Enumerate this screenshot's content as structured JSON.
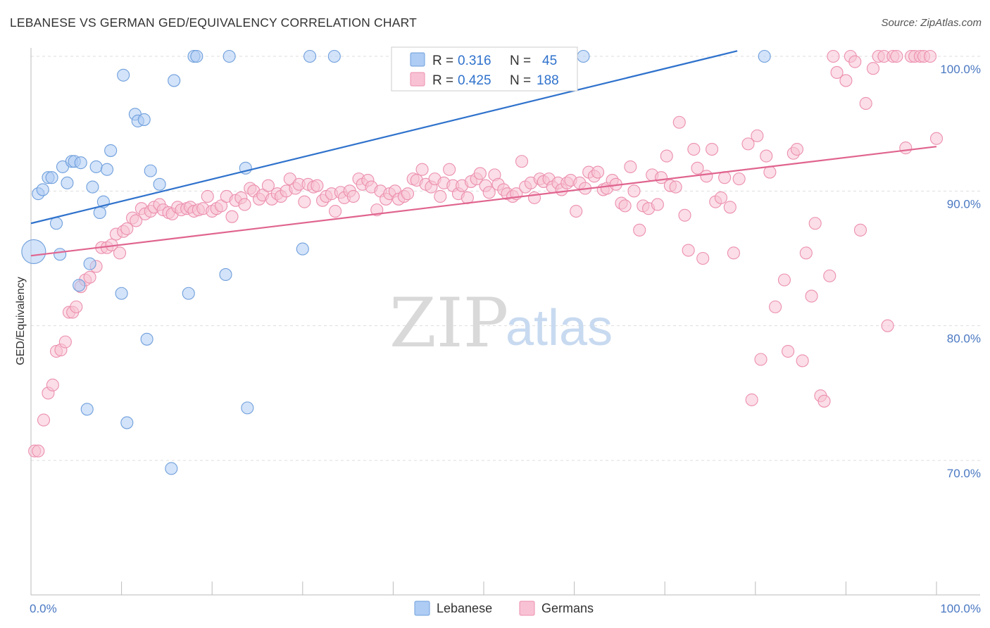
{
  "title": "LEBANESE VS GERMAN GED/EQUIVALENCY CORRELATION CHART",
  "source": "Source: ZipAtlas.com",
  "watermark": {
    "zip": "ZIP",
    "atlas": "atlas"
  },
  "colors": {
    "lebanese_fill": "#aeccf4",
    "lebanese_stroke": "#6f9fdc",
    "lebanese_line": "#2f72cc",
    "german_fill": "#f8c2d4",
    "german_stroke": "#ec8fad",
    "german_line": "#e0648f",
    "axis_text": "#4a78c2",
    "grid": "#dddddd"
  },
  "legend": {
    "rows": [
      {
        "r_label": "R =",
        "r_value": "0.316",
        "n_label": "N =",
        "n_value": "45"
      },
      {
        "r_label": "R =",
        "r_value": "0.425",
        "n_label": "N =",
        "n_value": "188"
      }
    ],
    "bottom": [
      "Lebanese",
      "Germans"
    ]
  },
  "chart_data": {
    "type": "scatter",
    "title": "LEBANESE VS GERMAN GED/EQUIVALENCY CORRELATION CHART",
    "xlabel": "",
    "ylabel": "GED/Equivalency",
    "xlim": [
      0,
      100
    ],
    "ylim": [
      61,
      101
    ],
    "x_tick_labels": [
      "0.0%",
      "100.0%"
    ],
    "y_ticks": [
      70,
      80,
      90,
      100
    ],
    "y_tick_labels": [
      "70.0%",
      "80.0%",
      "90.0%",
      "100.0%"
    ],
    "grid": true,
    "legend_position": "top-center",
    "series": [
      {
        "name": "Lebanese",
        "r": 0.316,
        "n": 45,
        "trend": {
          "x": [
            0,
            78
          ],
          "y": [
            87.6,
            100.4
          ]
        },
        "points": [
          [
            0.3,
            85.5,
            1
          ],
          [
            0.8,
            89.8,
            0
          ],
          [
            1.3,
            90.1,
            0
          ],
          [
            1.9,
            91.0,
            0
          ],
          [
            2.3,
            91.0,
            0
          ],
          [
            2.8,
            87.6,
            0
          ],
          [
            3.2,
            85.3,
            0
          ],
          [
            3.5,
            91.8,
            0
          ],
          [
            4.0,
            90.6,
            0
          ],
          [
            4.5,
            92.2,
            0
          ],
          [
            4.8,
            92.2,
            0
          ],
          [
            5.3,
            83.0,
            0
          ],
          [
            5.5,
            92.1,
            0
          ],
          [
            6.2,
            73.8,
            0
          ],
          [
            6.5,
            84.6,
            0
          ],
          [
            6.8,
            90.3,
            0
          ],
          [
            7.2,
            91.8,
            0
          ],
          [
            7.6,
            88.4,
            0
          ],
          [
            8.0,
            89.2,
            0
          ],
          [
            8.4,
            91.6,
            0
          ],
          [
            8.8,
            93.0,
            0
          ],
          [
            10.0,
            82.4,
            0
          ],
          [
            10.2,
            98.6,
            0
          ],
          [
            10.6,
            72.8,
            0
          ],
          [
            11.5,
            95.7,
            0
          ],
          [
            11.8,
            95.2,
            0
          ],
          [
            12.5,
            95.3,
            0
          ],
          [
            12.8,
            79.0,
            0
          ],
          [
            13.2,
            91.5,
            0
          ],
          [
            14.2,
            90.5,
            0
          ],
          [
            15.5,
            69.4,
            0
          ],
          [
            15.8,
            98.2,
            0
          ],
          [
            17.4,
            82.4,
            0
          ],
          [
            18.0,
            100.0,
            0
          ],
          [
            18.3,
            100.0,
            0
          ],
          [
            21.5,
            83.8,
            0
          ],
          [
            21.9,
            100.0,
            0
          ],
          [
            23.7,
            91.7,
            0
          ],
          [
            23.9,
            73.9,
            0
          ],
          [
            30.0,
            85.7,
            0
          ],
          [
            30.8,
            100.0,
            0
          ],
          [
            33.5,
            100.0,
            0
          ],
          [
            61.0,
            100.0,
            0
          ],
          [
            81.0,
            100.0,
            0
          ]
        ]
      },
      {
        "name": "Germans",
        "r": 0.425,
        "n": 188,
        "trend": {
          "x": [
            0,
            100
          ],
          "y": [
            85.2,
            93.3
          ]
        },
        "points": [
          [
            0.4,
            70.7,
            0
          ],
          [
            0.8,
            70.7,
            0
          ],
          [
            1.4,
            73.0,
            0
          ],
          [
            1.9,
            75.0,
            0
          ],
          [
            2.4,
            75.6,
            0
          ],
          [
            2.8,
            78.1,
            0
          ],
          [
            3.3,
            78.2,
            0
          ],
          [
            3.8,
            78.8,
            0
          ],
          [
            4.2,
            81.0,
            0
          ],
          [
            4.6,
            81.0,
            0
          ],
          [
            5.0,
            81.4,
            0
          ],
          [
            5.5,
            82.9,
            0
          ],
          [
            6.0,
            83.4,
            0
          ],
          [
            6.5,
            83.6,
            0
          ],
          [
            7.2,
            84.4,
            0
          ],
          [
            7.8,
            85.8,
            0
          ],
          [
            8.4,
            85.8,
            0
          ],
          [
            8.9,
            86.0,
            0
          ],
          [
            9.4,
            86.8,
            0
          ],
          [
            9.8,
            85.4,
            0
          ],
          [
            10.2,
            87.0,
            0
          ],
          [
            10.6,
            87.2,
            0
          ],
          [
            11.2,
            88.0,
            0
          ],
          [
            11.6,
            87.8,
            0
          ],
          [
            12.2,
            88.7,
            0
          ],
          [
            12.6,
            88.3,
            0
          ],
          [
            13.2,
            88.5,
            0
          ],
          [
            13.6,
            88.8,
            0
          ],
          [
            14.2,
            89.0,
            0
          ],
          [
            14.6,
            88.6,
            0
          ],
          [
            15.2,
            88.4,
            0
          ],
          [
            15.6,
            88.3,
            0
          ],
          [
            16.2,
            88.8,
            0
          ],
          [
            16.6,
            88.6,
            0
          ],
          [
            17.2,
            88.7,
            0
          ],
          [
            17.6,
            88.8,
            0
          ],
          [
            18.0,
            88.5,
            0
          ],
          [
            18.5,
            88.6,
            0
          ],
          [
            19.0,
            88.7,
            0
          ],
          [
            19.5,
            89.6,
            0
          ],
          [
            20.0,
            88.5,
            0
          ],
          [
            20.5,
            88.7,
            0
          ],
          [
            21.0,
            88.9,
            0
          ],
          [
            21.6,
            89.6,
            0
          ],
          [
            22.2,
            88.1,
            0
          ],
          [
            22.6,
            89.3,
            0
          ],
          [
            23.2,
            89.5,
            0
          ],
          [
            23.6,
            89.0,
            0
          ],
          [
            24.2,
            90.2,
            0
          ],
          [
            24.6,
            90.0,
            0
          ],
          [
            25.2,
            89.4,
            0
          ],
          [
            25.6,
            89.7,
            0
          ],
          [
            26.2,
            90.4,
            0
          ],
          [
            26.6,
            89.4,
            0
          ],
          [
            27.2,
            89.8,
            0
          ],
          [
            27.6,
            89.6,
            0
          ],
          [
            28.2,
            90.0,
            0
          ],
          [
            28.6,
            90.9,
            0
          ],
          [
            29.2,
            90.2,
            0
          ],
          [
            29.6,
            90.5,
            0
          ],
          [
            30.2,
            89.2,
            0
          ],
          [
            30.6,
            90.5,
            0
          ],
          [
            31.2,
            90.3,
            0
          ],
          [
            31.6,
            90.4,
            0
          ],
          [
            32.2,
            89.3,
            0
          ],
          [
            32.6,
            89.6,
            0
          ],
          [
            33.2,
            89.8,
            0
          ],
          [
            33.6,
            88.5,
            0
          ],
          [
            34.2,
            89.9,
            0
          ],
          [
            34.6,
            89.5,
            0
          ],
          [
            35.2,
            90.0,
            0
          ],
          [
            35.6,
            89.6,
            0
          ],
          [
            36.2,
            90.9,
            0
          ],
          [
            36.6,
            90.5,
            0
          ],
          [
            37.2,
            90.8,
            0
          ],
          [
            37.6,
            90.3,
            0
          ],
          [
            38.2,
            88.6,
            0
          ],
          [
            38.6,
            90.0,
            0
          ],
          [
            39.2,
            89.4,
            0
          ],
          [
            39.6,
            89.8,
            0
          ],
          [
            40.2,
            90.0,
            0
          ],
          [
            40.6,
            89.4,
            0
          ],
          [
            41.2,
            89.6,
            0
          ],
          [
            41.6,
            89.8,
            0
          ],
          [
            42.2,
            90.9,
            0
          ],
          [
            42.6,
            90.8,
            0
          ],
          [
            43.2,
            91.6,
            0
          ],
          [
            43.6,
            90.5,
            0
          ],
          [
            44.2,
            90.3,
            0
          ],
          [
            44.6,
            90.9,
            0
          ],
          [
            45.2,
            89.6,
            0
          ],
          [
            45.6,
            90.6,
            0
          ],
          [
            46.2,
            91.6,
            0
          ],
          [
            46.6,
            90.4,
            0
          ],
          [
            47.2,
            89.8,
            0
          ],
          [
            47.6,
            90.4,
            0
          ],
          [
            48.2,
            89.5,
            0
          ],
          [
            48.6,
            90.7,
            0
          ],
          [
            49.2,
            90.9,
            0
          ],
          [
            49.6,
            91.3,
            0
          ],
          [
            50.2,
            90.4,
            0
          ],
          [
            50.6,
            89.9,
            0
          ],
          [
            51.2,
            91.2,
            0
          ],
          [
            51.6,
            90.5,
            0
          ],
          [
            52.2,
            90.1,
            0
          ],
          [
            52.6,
            89.8,
            0
          ],
          [
            53.2,
            89.6,
            0
          ],
          [
            53.6,
            89.8,
            0
          ],
          [
            54.2,
            92.2,
            0
          ],
          [
            54.6,
            90.3,
            0
          ],
          [
            55.2,
            90.6,
            0
          ],
          [
            55.6,
            89.5,
            0
          ],
          [
            56.2,
            90.9,
            0
          ],
          [
            56.6,
            90.7,
            0
          ],
          [
            57.2,
            90.9,
            0
          ],
          [
            57.6,
            90.3,
            0
          ],
          [
            58.2,
            90.6,
            0
          ],
          [
            58.6,
            90.1,
            0
          ],
          [
            59.2,
            90.6,
            0
          ],
          [
            59.6,
            90.8,
            0
          ],
          [
            60.2,
            88.5,
            0
          ],
          [
            60.6,
            90.6,
            0
          ],
          [
            61.2,
            90.2,
            0
          ],
          [
            61.6,
            91.4,
            0
          ],
          [
            62.2,
            91.1,
            0
          ],
          [
            62.6,
            91.4,
            0
          ],
          [
            63.2,
            90.1,
            0
          ],
          [
            63.6,
            90.2,
            0
          ],
          [
            64.2,
            90.8,
            0
          ],
          [
            64.6,
            90.5,
            0
          ],
          [
            65.2,
            89.1,
            0
          ],
          [
            65.6,
            88.9,
            0
          ],
          [
            66.2,
            91.8,
            0
          ],
          [
            66.6,
            90.0,
            0
          ],
          [
            67.2,
            87.1,
            0
          ],
          [
            67.6,
            88.9,
            0
          ],
          [
            68.2,
            88.7,
            0
          ],
          [
            68.6,
            91.2,
            0
          ],
          [
            69.2,
            89.0,
            0
          ],
          [
            69.6,
            91.0,
            0
          ],
          [
            70.2,
            92.6,
            0
          ],
          [
            70.6,
            90.4,
            0
          ],
          [
            71.2,
            90.3,
            0
          ],
          [
            71.6,
            95.1,
            0
          ],
          [
            72.2,
            88.2,
            0
          ],
          [
            72.6,
            85.6,
            0
          ],
          [
            73.2,
            93.1,
            0
          ],
          [
            73.6,
            91.7,
            0
          ],
          [
            74.2,
            85.0,
            0
          ],
          [
            74.6,
            91.1,
            0
          ],
          [
            75.2,
            93.1,
            0
          ],
          [
            75.6,
            89.2,
            0
          ],
          [
            76.2,
            89.5,
            0
          ],
          [
            76.6,
            91.0,
            0
          ],
          [
            77.2,
            88.8,
            0
          ],
          [
            77.6,
            85.4,
            0
          ],
          [
            78.2,
            90.9,
            0
          ],
          [
            79.2,
            93.5,
            0
          ],
          [
            79.6,
            74.5,
            0
          ],
          [
            80.2,
            94.1,
            0
          ],
          [
            80.6,
            77.5,
            0
          ],
          [
            81.2,
            92.6,
            0
          ],
          [
            81.6,
            91.4,
            0
          ],
          [
            82.2,
            81.4,
            0
          ],
          [
            83.2,
            83.4,
            0
          ],
          [
            83.6,
            78.1,
            0
          ],
          [
            84.2,
            92.8,
            0
          ],
          [
            84.6,
            93.1,
            0
          ],
          [
            85.2,
            77.4,
            0
          ],
          [
            85.6,
            85.4,
            0
          ],
          [
            86.2,
            82.2,
            0
          ],
          [
            86.6,
            87.6,
            0
          ],
          [
            87.2,
            74.8,
            0
          ],
          [
            87.6,
            74.4,
            0
          ],
          [
            88.2,
            83.7,
            0
          ],
          [
            88.6,
            100.0,
            0
          ],
          [
            89.0,
            98.8,
            0
          ],
          [
            90.0,
            98.2,
            0
          ],
          [
            90.5,
            100.0,
            0
          ],
          [
            91.0,
            99.6,
            0
          ],
          [
            91.6,
            87.1,
            0
          ],
          [
            92.2,
            96.5,
            0
          ],
          [
            93.0,
            99.1,
            0
          ],
          [
            93.6,
            100.0,
            0
          ],
          [
            94.2,
            100.0,
            0
          ],
          [
            94.6,
            80.0,
            0
          ],
          [
            95.2,
            100.0,
            0
          ],
          [
            95.6,
            100.0,
            0
          ],
          [
            96.6,
            93.2,
            0
          ],
          [
            97.2,
            100.0,
            0
          ],
          [
            97.6,
            100.0,
            0
          ],
          [
            98.2,
            100.0,
            0
          ],
          [
            98.6,
            100.0,
            0
          ],
          [
            99.3,
            100.0,
            0
          ],
          [
            100.0,
            93.9,
            0
          ]
        ]
      }
    ]
  }
}
